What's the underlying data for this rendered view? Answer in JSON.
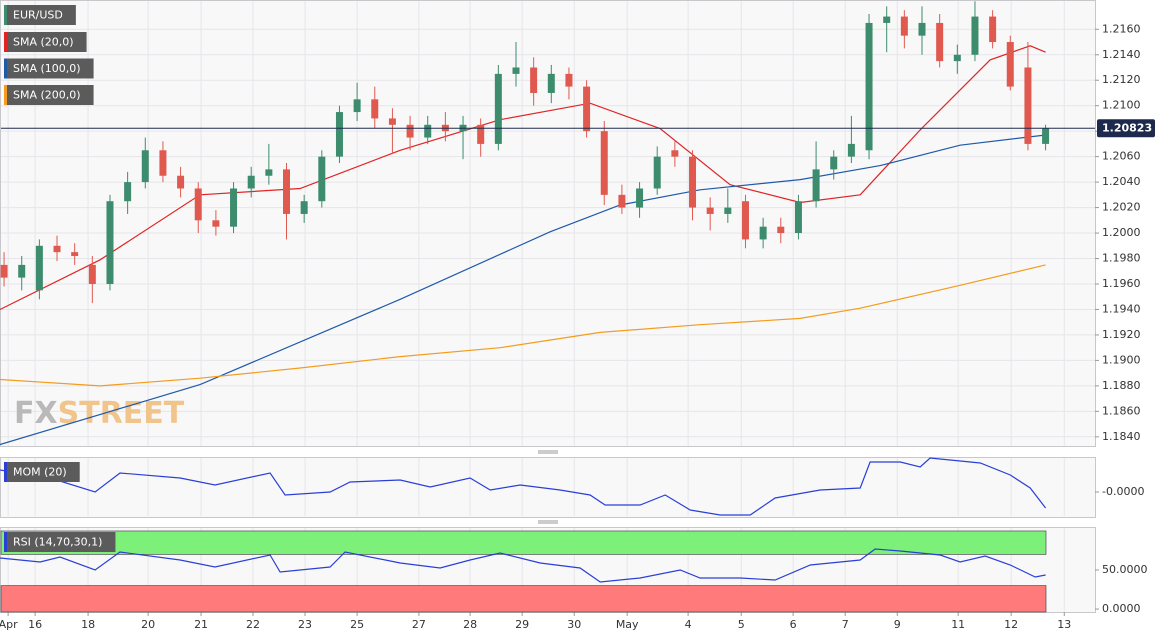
{
  "chart_data": [
    {
      "type": "candlestick",
      "title": "EUR/USD",
      "up_color": "#3d8c6e",
      "down_color": "#e0594e",
      "open": [
        1.1975,
        1.1965,
        1.1955,
        1.199,
        1.1985,
        1.1975,
        1.196,
        1.2025,
        1.204,
        1.2065,
        1.2045,
        1.2035,
        1.201,
        1.2005,
        1.2035,
        1.2045,
        1.205,
        1.2015,
        1.2025,
        1.206,
        1.2095,
        1.2105,
        1.209,
        1.2085,
        1.2075,
        1.2085,
        1.208,
        1.2085,
        1.207,
        1.2125,
        1.213,
        1.211,
        1.2125,
        1.2115,
        1.208,
        1.203,
        1.202,
        1.2035,
        1.2065,
        1.206,
        1.202,
        1.2015,
        1.2025,
        1.1995,
        1.2005,
        1.2,
        1.2025,
        1.205,
        1.206,
        1.2065,
        1.2165,
        1.217,
        1.2155,
        1.2165,
        1.2135,
        1.214,
        1.217,
        1.215,
        1.213,
        1.207
      ],
      "high": [
        1.1985,
        1.1982,
        1.1995,
        1.1998,
        1.1992,
        1.1982,
        1.203,
        1.2048,
        1.2075,
        1.2072,
        1.2052,
        1.204,
        1.2018,
        1.204,
        1.2052,
        1.207,
        1.2055,
        1.203,
        1.2065,
        1.21,
        1.2118,
        1.2115,
        1.2098,
        1.2092,
        1.2092,
        1.2095,
        1.2092,
        1.209,
        1.2132,
        1.215,
        1.2138,
        1.2132,
        1.213,
        1.212,
        1.2088,
        1.2038,
        1.204,
        1.2068,
        1.2072,
        1.2065,
        1.2028,
        1.2035,
        1.203,
        1.2012,
        1.2012,
        1.203,
        1.2072,
        1.2065,
        1.2092,
        1.2172,
        1.2178,
        1.2175,
        1.2178,
        1.2172,
        1.2148,
        1.2182,
        1.2175,
        1.2155,
        1.215,
        1.2085
      ],
      "low": [
        1.1958,
        1.1955,
        1.1948,
        1.1978,
        1.1975,
        1.1945,
        1.1955,
        1.2015,
        1.2035,
        1.204,
        1.2028,
        1.2,
        1.1998,
        1.2,
        1.2028,
        1.2038,
        1.1995,
        1.2008,
        1.202,
        1.2055,
        1.2088,
        1.2082,
        1.2062,
        1.2065,
        1.207,
        1.2072,
        1.2058,
        1.206,
        1.2065,
        1.2115,
        1.21,
        1.2102,
        1.2105,
        1.2075,
        1.2022,
        1.2015,
        1.2012,
        1.203,
        1.2052,
        1.201,
        1.2002,
        1.2008,
        1.1988,
        1.1988,
        1.1992,
        1.1995,
        1.202,
        1.2042,
        1.2055,
        1.2058,
        1.2142,
        1.2145,
        1.214,
        1.213,
        1.2125,
        1.2135,
        1.2145,
        1.2112,
        1.2065,
        1.2065
      ],
      "close": [
        1.1965,
        1.1975,
        1.199,
        1.1985,
        1.1982,
        1.196,
        1.2025,
        1.204,
        1.2065,
        1.2045,
        1.2035,
        1.201,
        1.2005,
        1.2035,
        1.2045,
        1.205,
        1.2015,
        1.2025,
        1.206,
        1.2095,
        1.2105,
        1.209,
        1.2085,
        1.2075,
        1.2085,
        1.208,
        1.2085,
        1.207,
        1.2125,
        1.213,
        1.211,
        1.2125,
        1.2115,
        1.208,
        1.203,
        1.202,
        1.2035,
        1.206,
        1.206,
        1.202,
        1.2015,
        1.202,
        1.1995,
        1.2005,
        1.2,
        1.2025,
        1.205,
        1.206,
        1.207,
        1.2165,
        1.217,
        1.2155,
        1.2165,
        1.2135,
        1.214,
        1.217,
        1.215,
        1.2115,
        1.207,
        1.20823
      ],
      "last_price": {
        "value": 1.20823,
        "label": "1.20823",
        "color": "#1d2a4d"
      },
      "series": [
        {
          "name": "SMA (20,0)",
          "color": "#e02424",
          "x": [
            -0.23,
            5.44,
            11.1,
            16.77,
            22.44,
            28.1,
            33.2,
            37.17,
            41.13,
            45.1,
            48.5,
            51.9,
            55.86,
            58.13,
            59.0
          ],
          "values": [
            1.194,
            1.1979,
            1.203,
            1.2035,
            1.2065,
            1.2089,
            1.2102,
            1.2082,
            1.2038,
            1.2024,
            1.203,
            1.2081,
            1.2136,
            1.2147,
            1.2142
          ]
        },
        {
          "name": "SMA (100,0)",
          "color": "#1f5aa8",
          "x": [
            -0.23,
            11.1,
            22.44,
            30.93,
            34.9,
            39.43,
            45.1,
            49.63,
            54.16,
            59.0
          ],
          "values": [
            1.1834,
            1.1881,
            1.1948,
            1.2001,
            1.2022,
            1.2034,
            1.2042,
            1.2053,
            1.2069,
            1.2077
          ]
        },
        {
          "name": "SMA (200,0)",
          "color": "#f39c1e",
          "x": [
            -0.23,
            5.44,
            11.1,
            16.77,
            22.44,
            28.1,
            33.77,
            39.43,
            45.1,
            48.5,
            54.16,
            59.0
          ],
          "values": [
            1.1885,
            1.188,
            1.1886,
            1.1894,
            1.1903,
            1.191,
            1.1922,
            1.1928,
            1.1933,
            1.1941,
            1.1959,
            1.1975
          ]
        }
      ],
      "watermark": [
        "FX",
        "STREET"
      ],
      "xlim": [
        -0.23,
        61.8
      ],
      "xticks": [
        {
          "value": 0.23,
          "label": "Apr"
        },
        {
          "value": 1.76,
          "label": "16"
        },
        {
          "value": 4.76,
          "label": "18"
        },
        {
          "value": 8.16,
          "label": "20"
        },
        {
          "value": 11.16,
          "label": "21"
        },
        {
          "value": 14.1,
          "label": "22"
        },
        {
          "value": 17.05,
          "label": "23"
        },
        {
          "value": 20.0,
          "label": "25"
        },
        {
          "value": 23.5,
          "label": "27"
        },
        {
          "value": 26.4,
          "label": "28"
        },
        {
          "value": 29.35,
          "label": "29"
        },
        {
          "value": 32.3,
          "label": "30"
        },
        {
          "value": 35.3,
          "label": "May"
        },
        {
          "value": 38.75,
          "label": "4"
        },
        {
          "value": 41.76,
          "label": "5"
        },
        {
          "value": 44.7,
          "label": "6"
        },
        {
          "value": 47.65,
          "label": "7"
        },
        {
          "value": 50.6,
          "label": "9"
        },
        {
          "value": 54.05,
          "label": "11"
        },
        {
          "value": 57.05,
          "label": "12"
        },
        {
          "value": 60.06,
          "label": "13"
        }
      ],
      "ylim": [
        1.1832,
        1.2183
      ],
      "yticks": [
        {
          "value": 1.184,
          "label": "1.1840"
        },
        {
          "value": 1.186,
          "label": "1.1860"
        },
        {
          "value": 1.188,
          "label": "1.1880"
        },
        {
          "value": 1.19,
          "label": "1.1900"
        },
        {
          "value": 1.192,
          "label": "1.1920"
        },
        {
          "value": 1.194,
          "label": "1.1940"
        },
        {
          "value": 1.196,
          "label": "1.1960"
        },
        {
          "value": 1.198,
          "label": "1.1980"
        },
        {
          "value": 1.2,
          "label": "1.2000"
        },
        {
          "value": 1.202,
          "label": "1.2020"
        },
        {
          "value": 1.204,
          "label": "1.2040"
        },
        {
          "value": 1.206,
          "label": "1.2060"
        },
        {
          "value": 1.208,
          "label": "1.2080"
        },
        {
          "value": 1.21,
          "label": "1.2100"
        },
        {
          "value": 1.212,
          "label": "1.2120"
        },
        {
          "value": 1.214,
          "label": "1.2140"
        },
        {
          "value": 1.216,
          "label": "1.2160"
        }
      ],
      "grid": true
    },
    {
      "type": "line",
      "title": "MOM (20)",
      "color": "#2a3fd6",
      "x": [
        -0.23,
        2.61,
        5.16,
        6.57,
        9.97,
        11.95,
        15.07,
        15.92,
        18.47,
        19.6,
        22.44,
        24.14,
        26.4,
        27.54,
        29.24,
        31.5,
        33.2,
        34.05,
        36.03,
        37.45,
        38.87,
        40.57,
        42.27,
        43.68,
        46.23,
        48.5,
        49.06,
        50.77,
        51.9,
        52.46,
        55.3,
        57,
        58.13,
        59.0
      ],
      "values": [
        0.0044,
        0.0028,
        0,
        0.0038,
        0.0028,
        0.0014,
        0.0038,
        -0.0006,
        0,
        0.002,
        0.0024,
        0.001,
        0.0028,
        0.0004,
        0.0014,
        0.0004,
        -0.0006,
        -0.0026,
        -0.0026,
        -0.0006,
        -0.0036,
        -0.0046,
        -0.0046,
        -0.0012,
        0.0004,
        0.0008,
        0.006,
        0.006,
        0.005,
        0.0068,
        0.0058,
        0.0034,
        0.0008,
        -0.0032
      ],
      "ylim": [
        -0.005,
        0.007
      ],
      "yticks": [
        {
          "value": 0,
          "label": "-0.0000"
        }
      ]
    },
    {
      "type": "line",
      "title": "RSI (14,70,30,1)",
      "color": "#2a3fd6",
      "overbought": 70,
      "oversold": 30,
      "overbought_color": "#7df07a",
      "oversold_color": "#ff7b7b",
      "x": [
        -0.23,
        2.04,
        3.17,
        5.16,
        6.57,
        9.97,
        11.95,
        15.07,
        15.64,
        18.47,
        19.32,
        22.44,
        24.7,
        26.4,
        28.1,
        30.37,
        32.63,
        33.77,
        36.03,
        38.3,
        39.43,
        41.7,
        43.68,
        45.67,
        48.5,
        49.35,
        50.77,
        53.03,
        54.16,
        55.58,
        57,
        58.41,
        59.0
      ],
      "values": [
        65.4,
        60.3,
        66.7,
        50,
        73.1,
        62.8,
        53.8,
        69.2,
        47.4,
        53.8,
        73.1,
        59,
        52.6,
        62.8,
        71.8,
        59,
        52.6,
        34.6,
        39.7,
        50,
        39.7,
        39.7,
        37.2,
        56.4,
        62.8,
        76.9,
        74.4,
        69.2,
        60.3,
        67.9,
        56.4,
        41,
        43.6
      ],
      "ylim": [
        -3.8,
        105.1
      ],
      "yticks": [
        {
          "value": 0,
          "label": "0.0000"
        },
        {
          "value": 50,
          "label": "50.0000"
        }
      ]
    }
  ]
}
